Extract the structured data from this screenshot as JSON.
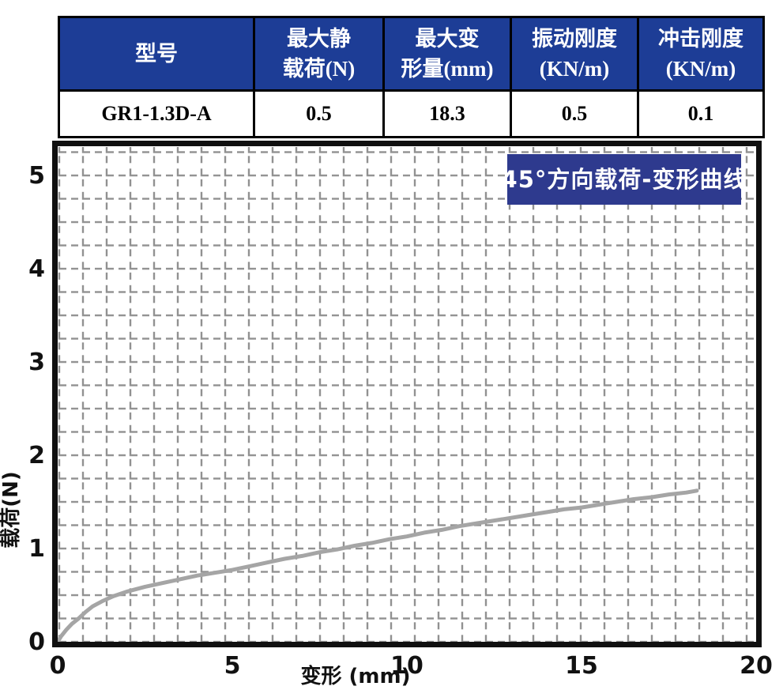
{
  "colors": {
    "table_header_bg": "#1d3d96",
    "table_header_fg": "#ffffff",
    "badge_bg": "#2e3a8e",
    "grid": "#919191",
    "curve": "#a5a5a5"
  },
  "table": {
    "columns": [
      [
        "型号"
      ],
      [
        "最大静",
        "载荷(N)"
      ],
      [
        "最大变",
        "形量(mm)"
      ],
      [
        "振动刚度",
        "(KN/m)"
      ],
      [
        "冲击刚度",
        "(KN/m)"
      ]
    ],
    "row": [
      "GR1-1.3D-A",
      "0.5",
      "18.3",
      "0.5",
      "0.1"
    ]
  },
  "chart_data": {
    "type": "line",
    "title": "45°方向载荷-变形曲线",
    "xlabel": "变形 (mm)",
    "ylabel": "载荷(N)",
    "xlim": [
      0,
      20
    ],
    "ylim": [
      0,
      5.3
    ],
    "x_ticks": [
      0,
      5,
      10,
      15,
      20
    ],
    "y_ticks": [
      0,
      1,
      2,
      3,
      4,
      5
    ],
    "grid": "dashed",
    "legend_position": "none",
    "series": [
      {
        "name": "45°方向载荷-变形曲线",
        "color": "#a5a5a5",
        "points": [
          [
            0,
            0
          ],
          [
            0.1,
            0.06
          ],
          [
            0.25,
            0.13
          ],
          [
            0.4,
            0.19
          ],
          [
            0.6,
            0.25
          ],
          [
            0.8,
            0.32
          ],
          [
            1,
            0.38
          ],
          [
            1.3,
            0.44
          ],
          [
            1.6,
            0.49
          ],
          [
            2,
            0.54
          ],
          [
            2.5,
            0.59
          ],
          [
            3,
            0.63
          ],
          [
            3.5,
            0.67
          ],
          [
            4,
            0.71
          ],
          [
            4.5,
            0.74
          ],
          [
            5,
            0.77
          ],
          [
            5.5,
            0.81
          ],
          [
            6,
            0.85
          ],
          [
            6.5,
            0.89
          ],
          [
            7,
            0.92
          ],
          [
            7.5,
            0.96
          ],
          [
            8,
            0.99
          ],
          [
            8.5,
            1.03
          ],
          [
            9,
            1.06
          ],
          [
            9.5,
            1.1
          ],
          [
            10,
            1.13
          ],
          [
            10.5,
            1.17
          ],
          [
            11,
            1.2
          ],
          [
            11.5,
            1.24
          ],
          [
            12,
            1.27
          ],
          [
            12.5,
            1.3
          ],
          [
            13,
            1.33
          ],
          [
            13.5,
            1.36
          ],
          [
            14,
            1.39
          ],
          [
            14.5,
            1.42
          ],
          [
            15,
            1.44
          ],
          [
            15.5,
            1.47
          ],
          [
            16,
            1.5
          ],
          [
            16.5,
            1.53
          ],
          [
            17,
            1.55
          ],
          [
            17.5,
            1.58
          ],
          [
            18,
            1.6
          ],
          [
            18.3,
            1.62
          ]
        ]
      }
    ]
  }
}
